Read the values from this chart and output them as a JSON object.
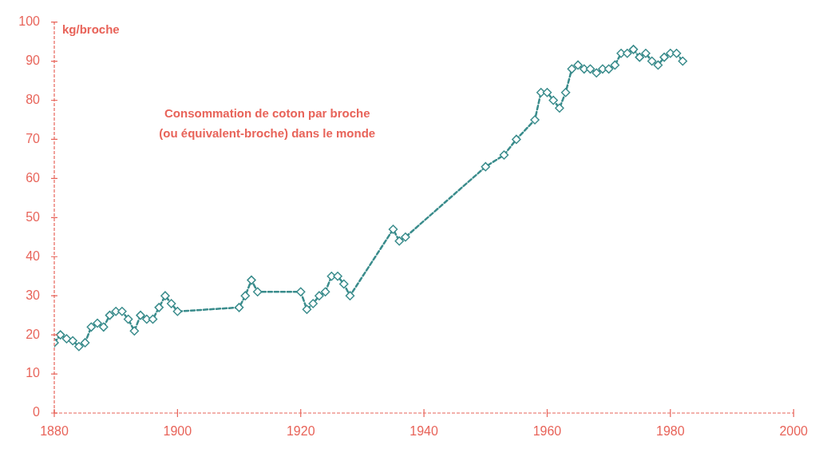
{
  "chart_data": {
    "type": "line",
    "title": "Consommation de coton par broche\n(ou équivalent-broche) dans le monde",
    "ylabel": "kg/broche",
    "x": [
      1880,
      1881,
      1882,
      1883,
      1884,
      1885,
      1886,
      1887,
      1888,
      1889,
      1890,
      1891,
      1892,
      1893,
      1894,
      1895,
      1896,
      1897,
      1898,
      1899,
      1900,
      1910,
      1911,
      1912,
      1913,
      1920,
      1921,
      1922,
      1923,
      1924,
      1925,
      1926,
      1927,
      1928,
      1935,
      1936,
      1937,
      1950,
      1953,
      1955,
      1958,
      1959,
      1960,
      1961,
      1962,
      1963,
      1964,
      1965,
      1966,
      1967,
      1968,
      1969,
      1970,
      1971,
      1972,
      1973,
      1974,
      1975,
      1976,
      1977,
      1978,
      1979,
      1980,
      1981,
      1982
    ],
    "series": [
      {
        "color": "#3a8c8c",
        "values": [
          18,
          20,
          19,
          18.5,
          17,
          18,
          22,
          23,
          22,
          25,
          26,
          26,
          24,
          21,
          25,
          24,
          24,
          27,
          30,
          28,
          26,
          27,
          30,
          34,
          31,
          31,
          26.5,
          28,
          30,
          31,
          35,
          35,
          33,
          30,
          47,
          44,
          45,
          63,
          66,
          70,
          75,
          82,
          82,
          80,
          78,
          82,
          88,
          89,
          88,
          88,
          87,
          88,
          88,
          89,
          92,
          92,
          93,
          91,
          92,
          90,
          89,
          91,
          92,
          92,
          90
        ]
      }
    ],
    "xlim": [
      1880,
      2000
    ],
    "xticks": [
      1880,
      1900,
      1920,
      1940,
      1960,
      1980,
      2000
    ],
    "ylim": [
      0,
      100
    ],
    "yticks": [
      0,
      10,
      20,
      30,
      40,
      50,
      60,
      70,
      80,
      90,
      100
    ],
    "grid": false,
    "legend": false,
    "marker": "diamond",
    "line_style": "dashed"
  }
}
